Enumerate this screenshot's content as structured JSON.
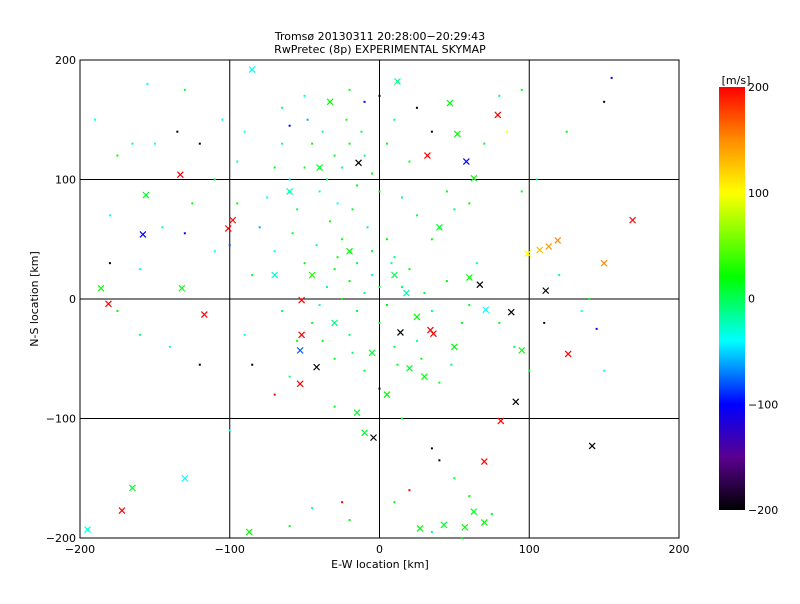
{
  "chart_data": {
    "type": "scatter",
    "title": "Tromsø 20130311 20:28:00−20:29:43",
    "subtitle": "RwPretec (8p) EXPERIMENTAL SKYMAP",
    "xlabel": "E-W location [km]",
    "ylabel": "N-S location [km]",
    "xlim": [
      -200,
      200
    ],
    "ylim": [
      -200,
      200
    ],
    "xticks": [
      "−200",
      "−100",
      "0",
      "100",
      "200"
    ],
    "yticks": [
      "−200",
      "−100",
      "0",
      "100",
      "200"
    ],
    "grid": true,
    "colorbar": {
      "label": "[m/s]",
      "range": [
        -200,
        200
      ],
      "ticks": [
        "200",
        "100",
        "0",
        "−100",
        "−200"
      ],
      "stops": [
        {
          "v": -200,
          "color": "#000000"
        },
        {
          "v": -150,
          "color": "#5a0090"
        },
        {
          "v": -100,
          "color": "#0000ff"
        },
        {
          "v": -40,
          "color": "#00ffff"
        },
        {
          "v": 20,
          "color": "#00ff00"
        },
        {
          "v": 100,
          "color": "#ffff00"
        },
        {
          "v": 150,
          "color": "#ff8c00"
        },
        {
          "v": 200,
          "color": "#ff0000"
        }
      ]
    },
    "series_note": "points as [east_km, north_km, velocity_m_s]",
    "crosses": [
      [
        -133,
        104,
        200
      ],
      [
        -181,
        -4,
        200
      ],
      [
        -186,
        9,
        20
      ],
      [
        -156,
        87,
        10
      ],
      [
        -158,
        54,
        -100
      ],
      [
        -132,
        9,
        20
      ],
      [
        -117,
        -13,
        200
      ],
      [
        -98,
        66,
        200
      ],
      [
        -101,
        59,
        200
      ],
      [
        -52,
        -1,
        200
      ],
      [
        -52,
        -30,
        200
      ],
      [
        -53,
        -71,
        200
      ],
      [
        -42,
        -57,
        -200
      ],
      [
        -53,
        -43,
        -80
      ],
      [
        -14,
        114,
        -200
      ],
      [
        -33,
        165,
        20
      ],
      [
        58,
        115,
        -100
      ],
      [
        32,
        120,
        200
      ],
      [
        79,
        154,
        200
      ],
      [
        169,
        66,
        200
      ],
      [
        150,
        30,
        150
      ],
      [
        99,
        38,
        100
      ],
      [
        107,
        41,
        130
      ],
      [
        113,
        44,
        140
      ],
      [
        119,
        49,
        150
      ],
      [
        111,
        7,
        -200
      ],
      [
        88,
        -11,
        -200
      ],
      [
        71,
        -9,
        -40
      ],
      [
        126,
        -46,
        200
      ],
      [
        95,
        -43,
        20
      ],
      [
        91,
        -86,
        -200
      ],
      [
        81,
        -102,
        200
      ],
      [
        142,
        -123,
        -200
      ],
      [
        70,
        -136,
        200
      ],
      [
        34,
        -26,
        200
      ],
      [
        36,
        -29,
        200
      ],
      [
        14,
        -28,
        -200
      ],
      [
        -4,
        -116,
        -200
      ],
      [
        -10,
        -112,
        10
      ],
      [
        -130,
        -150,
        -40
      ],
      [
        -165,
        -158,
        10
      ],
      [
        -172,
        -177,
        200
      ],
      [
        -195,
        -193,
        -30
      ],
      [
        -87,
        -195,
        20
      ],
      [
        27,
        -192,
        20
      ],
      [
        43,
        -189,
        10
      ],
      [
        57,
        -191,
        20
      ],
      [
        63,
        -178,
        10
      ],
      [
        70,
        -187,
        20
      ],
      [
        63,
        101,
        20
      ],
      [
        52,
        138,
        20
      ],
      [
        47,
        164,
        15
      ],
      [
        12,
        182,
        -10
      ],
      [
        -85,
        192,
        -40
      ],
      [
        67,
        12,
        -200
      ],
      [
        60,
        18,
        20
      ],
      [
        20,
        -58,
        10
      ],
      [
        -40,
        110,
        10
      ],
      [
        -20,
        40,
        20
      ],
      [
        10,
        20,
        0
      ],
      [
        -5,
        -45,
        10
      ],
      [
        25,
        -15,
        20
      ],
      [
        -30,
        -20,
        -10
      ],
      [
        40,
        60,
        10
      ],
      [
        -60,
        90,
        -20
      ],
      [
        5,
        -80,
        20
      ],
      [
        -15,
        -95,
        10
      ],
      [
        30,
        -65,
        15
      ],
      [
        -70,
        20,
        -30
      ],
      [
        50,
        -40,
        20
      ],
      [
        18,
        5,
        -20
      ],
      [
        -45,
        20,
        30
      ]
    ],
    "dots": [
      [
        -30,
        120,
        10
      ],
      [
        -25,
        110,
        -20
      ],
      [
        -20,
        130,
        20
      ],
      [
        -35,
        100,
        0
      ],
      [
        -40,
        90,
        -30
      ],
      [
        -15,
        95,
        15
      ],
      [
        -50,
        110,
        5
      ],
      [
        -10,
        120,
        -10
      ],
      [
        -45,
        130,
        20
      ],
      [
        -28,
        80,
        -40
      ],
      [
        -18,
        75,
        10
      ],
      [
        -55,
        75,
        0
      ],
      [
        -60,
        100,
        -50
      ],
      [
        -5,
        105,
        20
      ],
      [
        0,
        90,
        10
      ],
      [
        -38,
        140,
        -20
      ],
      [
        -22,
        150,
        30
      ],
      [
        -48,
        150,
        -60
      ],
      [
        -65,
        130,
        -10
      ],
      [
        -70,
        110,
        20
      ],
      [
        -75,
        85,
        -40
      ],
      [
        -12,
        140,
        0
      ],
      [
        5,
        130,
        15
      ],
      [
        -33,
        65,
        25
      ],
      [
        -8,
        60,
        -5
      ],
      [
        -58,
        55,
        10
      ],
      [
        -42,
        45,
        -20
      ],
      [
        -25,
        50,
        20
      ],
      [
        -15,
        30,
        0
      ],
      [
        -30,
        25,
        15
      ],
      [
        -5,
        20,
        -30
      ],
      [
        -20,
        15,
        20
      ],
      [
        0,
        10,
        10
      ],
      [
        -10,
        5,
        -10
      ],
      [
        -25,
        0,
        25
      ],
      [
        -35,
        10,
        -15
      ],
      [
        5,
        -5,
        20
      ],
      [
        15,
        10,
        0
      ],
      [
        -15,
        -10,
        10
      ],
      [
        -40,
        -5,
        -25
      ],
      [
        20,
        25,
        15
      ],
      [
        10,
        35,
        -5
      ],
      [
        -50,
        30,
        20
      ],
      [
        -45,
        -20,
        10
      ],
      [
        -20,
        -30,
        -10
      ],
      [
        0,
        -20,
        20
      ],
      [
        10,
        -40,
        5
      ],
      [
        -30,
        -50,
        15
      ],
      [
        25,
        -35,
        -20
      ],
      [
        -10,
        -60,
        10
      ],
      [
        -55,
        -35,
        25
      ],
      [
        30,
        5,
        10
      ],
      [
        35,
        -10,
        -10
      ],
      [
        45,
        15,
        20
      ],
      [
        -65,
        -10,
        0
      ],
      [
        -70,
        40,
        -40
      ],
      [
        -80,
        60,
        -60
      ],
      [
        -85,
        20,
        10
      ],
      [
        -90,
        -30,
        -40
      ],
      [
        -95,
        80,
        20
      ],
      [
        -100,
        45,
        -80
      ],
      [
        -110,
        100,
        10
      ],
      [
        -120,
        130,
        -200
      ],
      [
        -135,
        140,
        -200
      ],
      [
        -150,
        130,
        -40
      ],
      [
        -175,
        120,
        20
      ],
      [
        -180,
        30,
        -200
      ],
      [
        -160,
        25,
        -40
      ],
      [
        -140,
        -40,
        -30
      ],
      [
        -120,
        -55,
        -200
      ],
      [
        -100,
        -110,
        -40
      ],
      [
        -85,
        -55,
        -200
      ],
      [
        -70,
        -80,
        200
      ],
      [
        -60,
        -65,
        -10
      ],
      [
        -30,
        -90,
        15
      ],
      [
        0,
        -75,
        -200
      ],
      [
        15,
        -100,
        10
      ],
      [
        35,
        -125,
        -200
      ],
      [
        40,
        -135,
        -200
      ],
      [
        20,
        -160,
        200
      ],
      [
        10,
        -170,
        20
      ],
      [
        50,
        -150,
        10
      ],
      [
        60,
        -165,
        20
      ],
      [
        75,
        -180,
        10
      ],
      [
        55,
        -200,
        15
      ],
      [
        35,
        -195,
        -10
      ],
      [
        -20,
        -185,
        20
      ],
      [
        -25,
        -170,
        200
      ],
      [
        -60,
        -190,
        10
      ],
      [
        -45,
        -175,
        -20
      ],
      [
        80,
        -20,
        20
      ],
      [
        90,
        -40,
        -5
      ],
      [
        100,
        -60,
        10
      ],
      [
        110,
        -20,
        -200
      ],
      [
        120,
        20,
        -20
      ],
      [
        135,
        -10,
        -40
      ],
      [
        145,
        -25,
        -100
      ],
      [
        150,
        -60,
        -40
      ],
      [
        140,
        0,
        10
      ],
      [
        95,
        90,
        15
      ],
      [
        105,
        100,
        -10
      ],
      [
        85,
        140,
        100
      ],
      [
        80,
        170,
        -10
      ],
      [
        95,
        175,
        10
      ],
      [
        150,
        165,
        -200
      ],
      [
        155,
        185,
        -100
      ],
      [
        125,
        140,
        20
      ],
      [
        70,
        130,
        10
      ],
      [
        60,
        80,
        20
      ],
      [
        50,
        75,
        -10
      ],
      [
        45,
        90,
        15
      ],
      [
        35,
        50,
        20
      ],
      [
        25,
        70,
        0
      ],
      [
        15,
        85,
        -20
      ],
      [
        20,
        115,
        10
      ],
      [
        10,
        150,
        -10
      ],
      [
        25,
        160,
        -200
      ],
      [
        35,
        140,
        -200
      ],
      [
        0,
        170,
        -200
      ],
      [
        -10,
        165,
        -100
      ],
      [
        -20,
        175,
        10
      ],
      [
        -50,
        170,
        -30
      ],
      [
        -60,
        145,
        -100
      ],
      [
        -65,
        160,
        -10
      ],
      [
        -90,
        140,
        -40
      ],
      [
        -95,
        115,
        -20
      ],
      [
        -105,
        150,
        -40
      ],
      [
        -130,
        175,
        10
      ],
      [
        -155,
        180,
        -40
      ],
      [
        -165,
        130,
        -20
      ],
      [
        -190,
        150,
        -40
      ],
      [
        -145,
        60,
        -20
      ],
      [
        -130,
        55,
        -100
      ],
      [
        -110,
        40,
        -40
      ],
      [
        -125,
        80,
        20
      ],
      [
        -180,
        70,
        -40
      ],
      [
        -175,
        -10,
        20
      ],
      [
        -160,
        -30,
        -10
      ],
      [
        5,
        50,
        20
      ],
      [
        -5,
        40,
        10
      ],
      [
        8,
        30,
        -15
      ],
      [
        -28,
        35,
        25
      ],
      [
        -38,
        -35,
        20
      ],
      [
        12,
        -55,
        15
      ],
      [
        -18,
        -45,
        -5
      ],
      [
        28,
        -50,
        20
      ],
      [
        40,
        -70,
        10
      ],
      [
        48,
        -55,
        -10
      ],
      [
        55,
        -20,
        20
      ],
      [
        60,
        -5,
        10
      ],
      [
        65,
        30,
        -20
      ]
    ]
  }
}
